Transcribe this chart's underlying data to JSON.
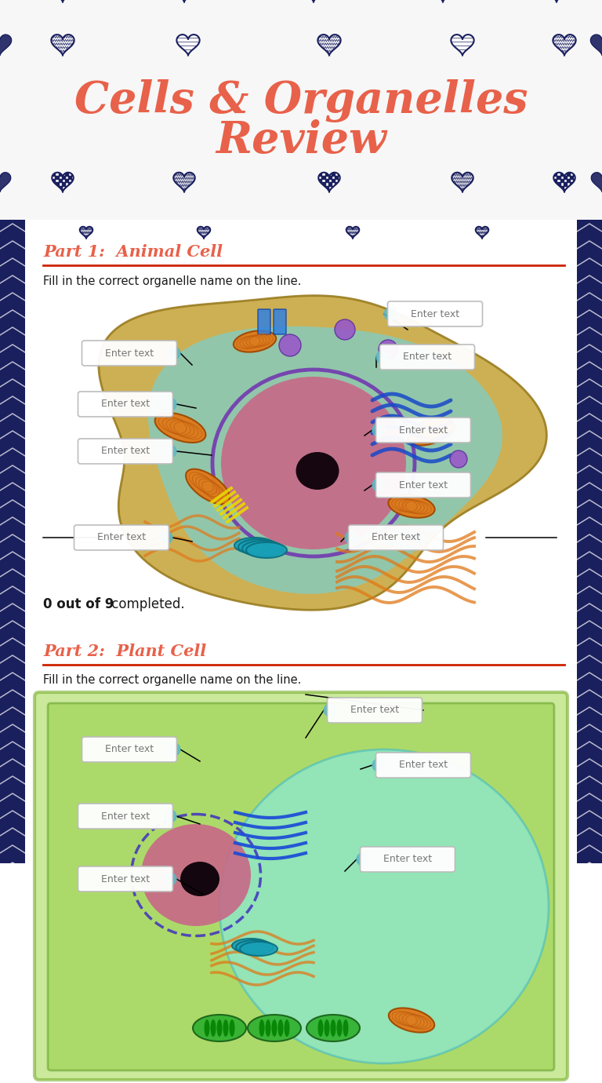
{
  "title_line1": "Cells & Organelles",
  "title_line2": "Review",
  "title_color": "#E8614A",
  "background_color": "#FFFFFF",
  "part1_heading": "Part 1:  Animal Cell",
  "part2_heading": "Part 2:  Plant Cell",
  "heading_color": "#E8614A",
  "instruction_text": "Fill in the correct organelle name on the line.",
  "completed_text_bold": "0 out of 9",
  "completed_text_normal": " completed.",
  "enter_text_label": "Enter text",
  "divider_color": "#CC2200",
  "text_color": "#1a1a1a",
  "navy": "#1a1f5e",
  "header_bg": "#F5F5F5",
  "teal_dot": "#5BB8C4"
}
